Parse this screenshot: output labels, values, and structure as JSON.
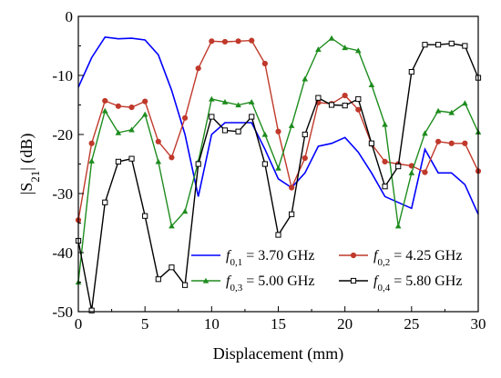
{
  "chart_data": {
    "type": "line",
    "xlabel": "Displacement (mm)",
    "ylabel": "|S21| (dB)",
    "xlim": [
      0,
      30
    ],
    "ylim": [
      -50,
      0
    ],
    "xticks": [
      0,
      5,
      10,
      15,
      20,
      25,
      30
    ],
    "yticks": [
      0,
      -10,
      -20,
      -30,
      -40,
      -50
    ],
    "grid": false,
    "legend_position": "bottom-right",
    "series": [
      {
        "name": "f0,1 = 3.70 GHz",
        "legend_italic": "f",
        "legend_sub": "0,1",
        "legend_rest": " = 3.70 GHz",
        "color": "#0000ff",
        "marker": "none",
        "x": [
          0,
          1,
          2,
          3,
          4,
          5,
          6,
          7,
          8,
          9,
          10,
          11,
          12,
          13,
          14,
          15,
          16,
          17,
          18,
          19,
          20,
          21,
          22,
          23,
          24,
          25,
          26,
          27,
          28,
          29,
          30
        ],
        "y": [
          -12,
          -7,
          -3.5,
          -3.8,
          -3.7,
          -4,
          -6.5,
          -12.5,
          -20,
          -30.5,
          -20,
          -18,
          -18,
          -18,
          -22.5,
          -27.5,
          -29,
          -26.5,
          -22,
          -21.5,
          -20.5,
          -23,
          -26.5,
          -30.5,
          -31.5,
          -32.5,
          -22.5,
          -26.5,
          -26.5,
          -28.5,
          -33.5
        ]
      },
      {
        "name": "f0,2 = 4.25 GHz",
        "legend_italic": "f",
        "legend_sub": "0,2",
        "legend_rest": " = 4.25 GHz",
        "color": "#c0392b",
        "marker": "circle",
        "x": [
          0,
          1,
          2,
          3,
          4,
          5,
          6,
          7,
          8,
          9,
          10,
          11,
          12,
          13,
          14,
          15,
          16,
          17,
          18,
          19,
          20,
          21,
          22,
          23,
          24,
          25,
          26,
          27,
          28,
          29,
          30
        ],
        "y": [
          -34.5,
          -21.5,
          -14.3,
          -15.2,
          -15.4,
          -14.4,
          -21.2,
          -23.9,
          -17.2,
          -8.8,
          -4.2,
          -4.3,
          -4.2,
          -4.1,
          -8,
          -19.5,
          -29,
          -24,
          -14.6,
          -14.8,
          -13.4,
          -15.8,
          -21.6,
          -24.6,
          -25,
          -25.3,
          -26.4,
          -21.2,
          -21.5,
          -21.5,
          -26.2
        ]
      },
      {
        "name": "f0,3 = 5.00 GHz",
        "legend_italic": "f",
        "legend_sub": "0,3",
        "legend_rest": " = 5.00 GHz",
        "color": "#1e8c1e",
        "marker": "triangle",
        "x": [
          0,
          1,
          2,
          3,
          4,
          5,
          6,
          7,
          8,
          9,
          10,
          11,
          12,
          13,
          14,
          15,
          16,
          17,
          18,
          19,
          20,
          21,
          22,
          23,
          24,
          25,
          26,
          27,
          28,
          29,
          30
        ],
        "y": [
          -45,
          -24.5,
          -16,
          -19.7,
          -19.2,
          -16.6,
          -24.6,
          -35.5,
          -33,
          -24.6,
          -14,
          -14.5,
          -15,
          -14.5,
          -20,
          -25.7,
          -18.5,
          -10.6,
          -5.6,
          -3.7,
          -5.3,
          -5.8,
          -11.6,
          -18.3,
          -35.5,
          -26.5,
          -19.8,
          -16,
          -16.3,
          -14.7,
          -19.6
        ]
      },
      {
        "name": "f0,4 = 5.80 GHz",
        "legend_italic": "f",
        "legend_sub": "0,4",
        "legend_rest": " = 5.80 GHz",
        "color": "#000000",
        "marker": "square",
        "x": [
          0,
          1,
          2,
          3,
          4,
          5,
          6,
          7,
          8,
          9,
          10,
          11,
          12,
          13,
          14,
          15,
          16,
          17,
          18,
          19,
          20,
          21,
          22,
          23,
          24,
          25,
          26,
          27,
          28,
          29,
          30
        ],
        "y": [
          -38,
          -49.8,
          -31.5,
          -24.6,
          -24.1,
          -33.8,
          -44.5,
          -42.5,
          -45.5,
          -25,
          -17,
          -19.3,
          -19.5,
          -17,
          -25,
          -37,
          -33.5,
          -20,
          -13.8,
          -15,
          -15.1,
          -14,
          -21.5,
          -28.8,
          -25.4,
          -9.4,
          -4.8,
          -4.8,
          -4.6,
          -5,
          -10.4
        ]
      }
    ]
  }
}
